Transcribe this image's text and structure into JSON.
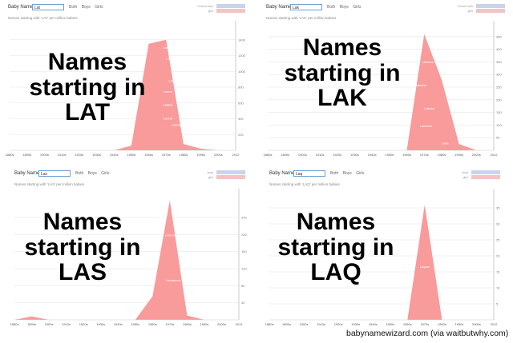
{
  "panels": [
    {
      "search": "Lat",
      "subtitle": "Names starting with 'LAT' per million babies",
      "radios": [
        "Both",
        "Boys",
        "Girls"
      ],
      "rank_label_1": "Current rank",
      "rank_label_2": "girls",
      "overlay": [
        "Names",
        "starting in",
        "LAT"
      ]
    },
    {
      "search": "Lak",
      "subtitle": "Names starting with 'LAK' per million babies",
      "radios": [
        "Both",
        "Boys",
        "Girls"
      ],
      "rank_label_1": "Current rank",
      "rank_label_2": "girls",
      "overlay": [
        "Names",
        "starting in",
        "LAK"
      ]
    },
    {
      "search": "Las",
      "subtitle": "Names starting with 'LAS' per million babies",
      "radios": [
        "Both",
        "Boys",
        "Girls"
      ],
      "rank_label_1": "boys",
      "rank_label_2": "girls",
      "overlay": [
        "Names",
        "starting in",
        "LAS"
      ]
    },
    {
      "search": "Laq",
      "subtitle": "Names starting with 'LAQ' per million babies",
      "radios": [
        "Both",
        "Boys",
        "Girls"
      ],
      "rank_label_1": "boys",
      "rank_label_2": "girls",
      "overlay": [
        "Names",
        "starting in",
        "LAQ"
      ]
    }
  ],
  "app_label": "Baby Name",
  "credit": "babynamewizard.com (via waitbutwhy.com)",
  "colors": {
    "area": "#f99a9b",
    "grid": "#e6e6e6",
    "axis": "#999999"
  },
  "chart_data": [
    {
      "type": "area",
      "x": [
        "1880s",
        "1890s",
        "1900s",
        "1910s",
        "1920s",
        "1930s",
        "1940s",
        "1950s",
        "1960s",
        "1970s",
        "1980s",
        "1990s",
        "2000s",
        "2012"
      ],
      "values": [
        0,
        0,
        0,
        0,
        0,
        0,
        0,
        60,
        1350,
        1400,
        80,
        20,
        0,
        0
      ],
      "ylim": [
        0,
        1600
      ],
      "yticks": [
        200,
        400,
        600,
        800,
        1000,
        1200,
        1400
      ],
      "labels": [
        "Latonya",
        "Latasha",
        "Latoya",
        "Latrice",
        "Latisha",
        "Latonia",
        "Latanya"
      ]
    },
    {
      "type": "area",
      "x": [
        "1880s",
        "1890s",
        "1900s",
        "1910s",
        "1920s",
        "1930s",
        "1940s",
        "1950s",
        "1960s",
        "1970s",
        "1980s",
        "1990s",
        "2000s",
        "2012"
      ],
      "values": [
        0,
        0,
        0,
        0,
        0,
        0,
        0,
        0,
        0,
        460,
        280,
        25,
        0,
        0
      ],
      "ylim": [
        0,
        500
      ],
      "yticks": [
        50,
        100,
        150,
        200,
        250,
        300,
        350,
        400,
        450
      ],
      "labels": [
        "Lakeisha",
        "Lakesha",
        "Lakisha",
        "Lakeshia",
        "Lakia"
      ]
    },
    {
      "type": "area",
      "x": [
        "1880s",
        "1890s",
        "1900s",
        "1910s",
        "1920s",
        "1930s",
        "1940s",
        "1950s",
        "1960s",
        "1970s",
        "1980s",
        "1990s",
        "2000s",
        "2012"
      ],
      "values": [
        0,
        8,
        0,
        0,
        0,
        0,
        0,
        0,
        55,
        280,
        10,
        0,
        0,
        0
      ],
      "ylim": [
        0,
        300
      ],
      "yticks": [
        40,
        80,
        120,
        160,
        200,
        240
      ],
      "labels": [
        "Lasha",
        "Lashonda",
        "Lashawnda"
      ]
    },
    {
      "type": "area",
      "x": [
        "1880s",
        "1890s",
        "1900s",
        "1910s",
        "1920s",
        "1930s",
        "1940s",
        "1950s",
        "1960s",
        "1970s",
        "1980s",
        "1990s",
        "2000s",
        "2012"
      ],
      "values": [
        0,
        0,
        0,
        0,
        0,
        0,
        0,
        0,
        0,
        36,
        0,
        0,
        0,
        0
      ],
      "ylim": [
        0,
        40
      ],
      "yticks": [
        5,
        10,
        15,
        20,
        25,
        30,
        35
      ],
      "labels": [
        "Laquita"
      ]
    }
  ]
}
